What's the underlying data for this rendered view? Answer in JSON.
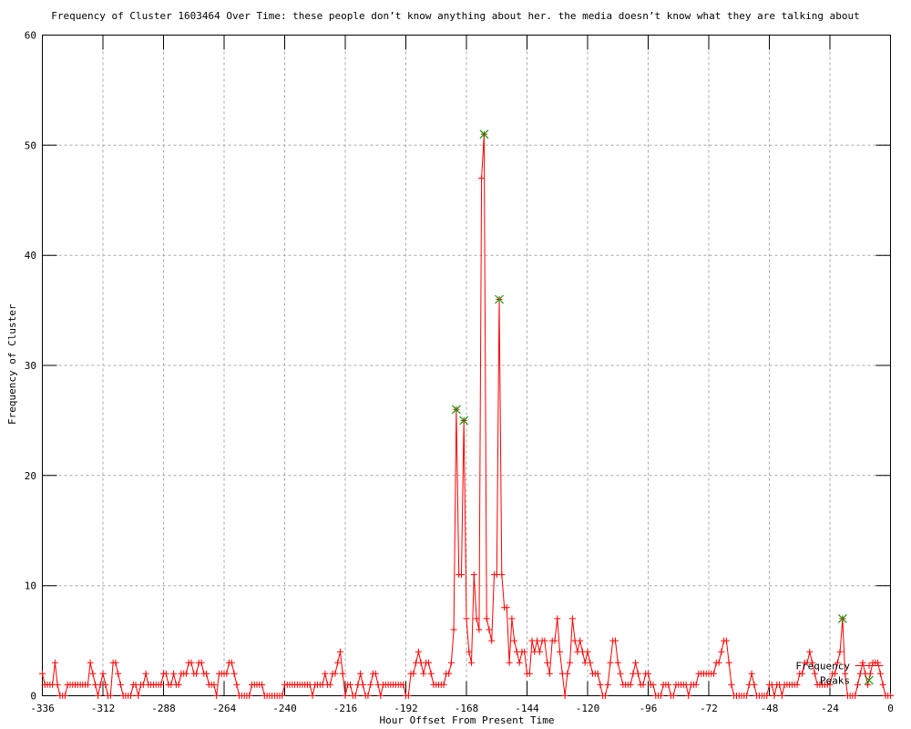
{
  "chart": {
    "title": "Frequency of Cluster 1603464 Over Time: these people don’t know anything about her. the media doesn’t know what they are talking about",
    "xlabel": "Hour Offset From Present Time",
    "ylabel": "Frequency of Cluster",
    "colors": {
      "frequency": "#ff0000",
      "peaks": "#00a000",
      "grid": "#a8a8a8",
      "axis": "#000000",
      "background": "#ffffff"
    }
  },
  "chart_data": {
    "type": "line",
    "title": "Frequency of Cluster 1603464 Over Time: these people don’t know anything about her. the media doesn’t know what they are talking about",
    "xlabel": "Hour Offset From Present Time",
    "ylabel": "Frequency of Cluster",
    "xlim": [
      -336,
      0
    ],
    "ylim": [
      0,
      60
    ],
    "xticks": [
      -336,
      -312,
      -288,
      -264,
      -240,
      -216,
      -192,
      -168,
      -144,
      -120,
      -96,
      -72,
      -48,
      -24,
      0
    ],
    "yticks": [
      0,
      10,
      20,
      30,
      40,
      50,
      60
    ],
    "grid": true,
    "legend_position": "bottom-right-inside",
    "series": [
      {
        "name": "Frequency",
        "style": "linespoints",
        "marker": "plus",
        "color": "#ff0000",
        "x_start": -336,
        "x_step": 1,
        "values": [
          2,
          1,
          1,
          1,
          1,
          3,
          1,
          0,
          0,
          0,
          1,
          1,
          1,
          1,
          1,
          1,
          1,
          1,
          1,
          3,
          2,
          1,
          0,
          1,
          2,
          1,
          0,
          0,
          3,
          3,
          2,
          1,
          0,
          0,
          0,
          0,
          1,
          1,
          0,
          1,
          1,
          2,
          1,
          1,
          1,
          1,
          1,
          1,
          2,
          2,
          1,
          1,
          2,
          1,
          1,
          2,
          2,
          2,
          3,
          3,
          2,
          2,
          3,
          3,
          2,
          2,
          1,
          1,
          1,
          0,
          2,
          2,
          2,
          2,
          3,
          3,
          2,
          1,
          0,
          0,
          0,
          0,
          0,
          1,
          1,
          1,
          1,
          1,
          0,
          0,
          0,
          0,
          0,
          0,
          0,
          0,
          1,
          1,
          1,
          1,
          1,
          1,
          1,
          1,
          1,
          1,
          1,
          0,
          1,
          1,
          1,
          1,
          2,
          1,
          1,
          2,
          2,
          3,
          4,
          2,
          0,
          1,
          1,
          0,
          0,
          1,
          2,
          1,
          0,
          0,
          1,
          2,
          2,
          1,
          0,
          1,
          1,
          1,
          1,
          1,
          1,
          1,
          1,
          1,
          0,
          0,
          2,
          2,
          3,
          4,
          3,
          2,
          3,
          3,
          2,
          1,
          1,
          1,
          1,
          1,
          2,
          2,
          3,
          6,
          26,
          11,
          11,
          25,
          7,
          4,
          3,
          11,
          7,
          6,
          47,
          51,
          7,
          6,
          5,
          11,
          11,
          36,
          11,
          8,
          8,
          3,
          7,
          5,
          4,
          3,
          4,
          4,
          2,
          2,
          5,
          4,
          5,
          4,
          5,
          5,
          3,
          2,
          5,
          5,
          7,
          4,
          2,
          0,
          2,
          3,
          7,
          5,
          4,
          5,
          4,
          3,
          4,
          3,
          2,
          2,
          2,
          1,
          0,
          0,
          1,
          3,
          5,
          5,
          3,
          2,
          1,
          1,
          1,
          1,
          2,
          3,
          2,
          1,
          1,
          2,
          2,
          1,
          1,
          0,
          0,
          0,
          1,
          1,
          1,
          0,
          0,
          1,
          1,
          1,
          1,
          1,
          0,
          1,
          1,
          1,
          2,
          2,
          2,
          2,
          2,
          2,
          2,
          3,
          3,
          4,
          5,
          5,
          3,
          1,
          0,
          0,
          0,
          0,
          0,
          0,
          1,
          2,
          1,
          0,
          0,
          0,
          0,
          0,
          1,
          1,
          0,
          1,
          1,
          0,
          1,
          1,
          1,
          1,
          1,
          1,
          2,
          2,
          3,
          3,
          4,
          3,
          2,
          1,
          1,
          1,
          1,
          1,
          1,
          2,
          2,
          3,
          4,
          7,
          2,
          0,
          0,
          0,
          0,
          1,
          2,
          3,
          2,
          1,
          2,
          3,
          3,
          3,
          2,
          1,
          0,
          0,
          0
        ]
      },
      {
        "name": "Peaks",
        "style": "points",
        "marker": "x",
        "color": "#00a000",
        "points": [
          [
            -172,
            26
          ],
          [
            -169,
            25
          ],
          [
            -161,
            51
          ],
          [
            -155,
            36
          ],
          [
            -19,
            7
          ]
        ]
      }
    ]
  }
}
